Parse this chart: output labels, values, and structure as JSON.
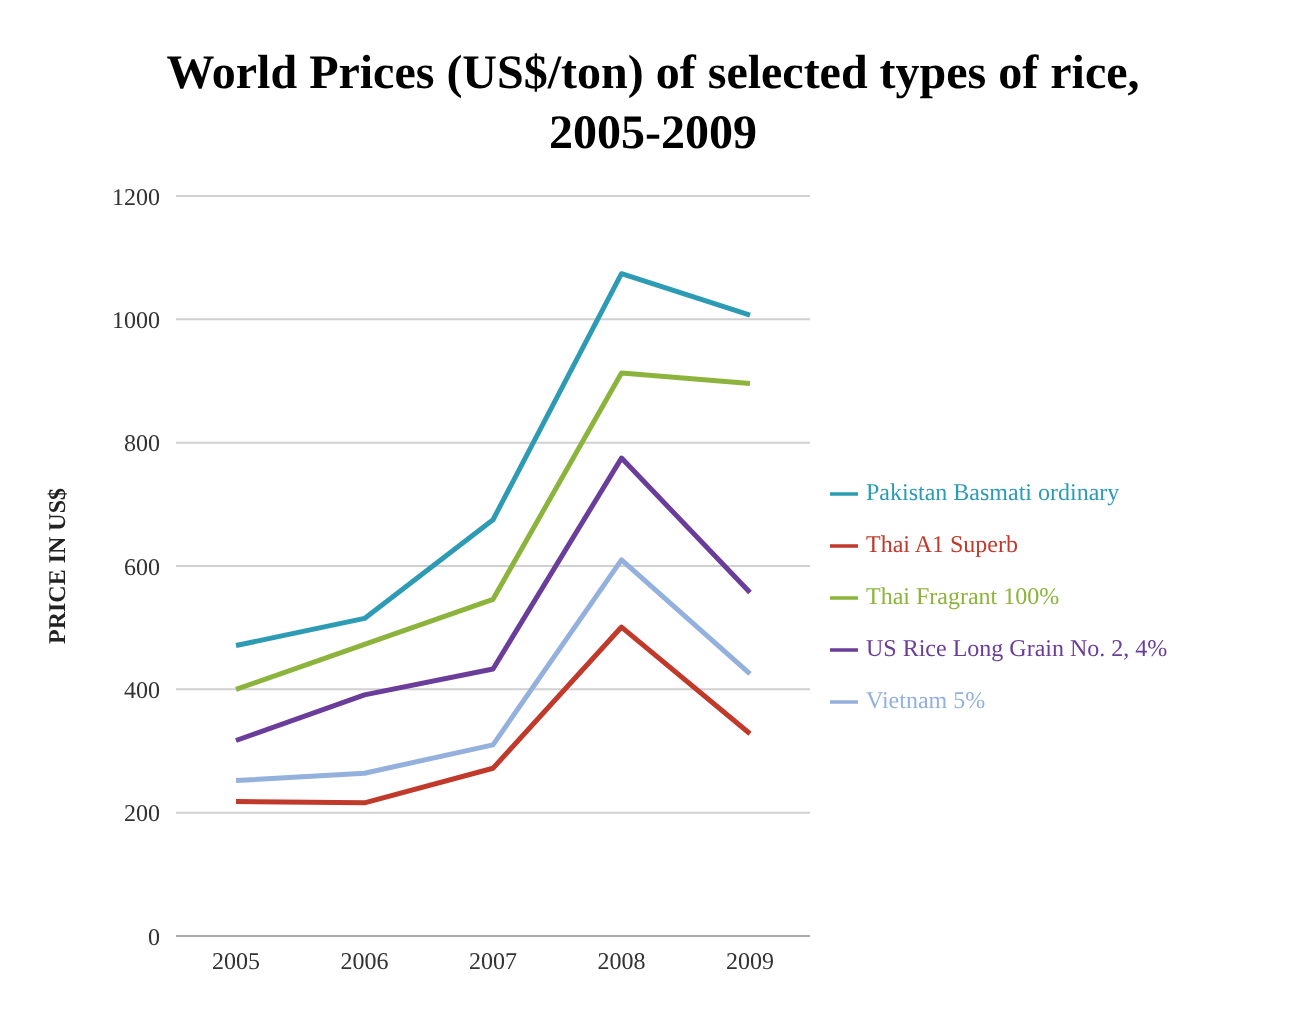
{
  "chart_data": {
    "type": "line",
    "title": "World Prices (US$/ton) of selected types of rice, 2005-2009",
    "ylabel": "PRICE IN US$",
    "categories": [
      "2005",
      "2006",
      "2007",
      "2008",
      "2009"
    ],
    "series": [
      {
        "name": "Thai A1 Superb",
        "color": "#c0392b",
        "values": [
          218,
          216,
          272,
          501,
          328
        ]
      },
      {
        "name": "Thai Fragrant 100%",
        "color": "#8cb43c",
        "values": [
          400,
          473,
          546,
          913,
          896
        ]
      },
      {
        "name": "US Rice Long Grain No. 2, 4%",
        "color": "#6a3d9a",
        "values": [
          317,
          391,
          433,
          775,
          557
        ]
      },
      {
        "name": "Pakistan Basmati ordinary",
        "color": "#2e9bb5",
        "values": [
          471,
          515,
          675,
          1074,
          1007
        ]
      },
      {
        "name": "Vietnam 5%",
        "color": "#94b0dc",
        "values": [
          252,
          264,
          310,
          610,
          425
        ]
      }
    ],
    "ylim": [
      0,
      1200
    ],
    "yticks": [
      0,
      200,
      400,
      600,
      800,
      1000,
      1200
    ],
    "grid": "y",
    "legend": "right",
    "marker": "none",
    "line_style": "solid"
  }
}
